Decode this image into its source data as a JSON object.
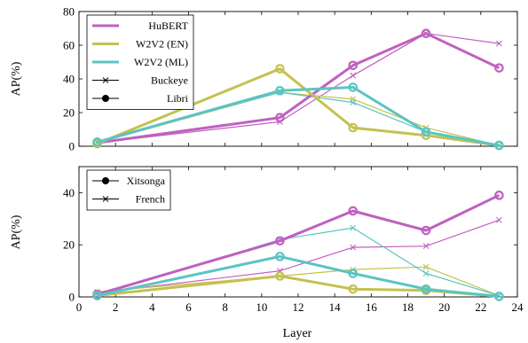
{
  "chart_data": [
    {
      "type": "line",
      "xlabel": "",
      "ylabel": "AP(%)",
      "xlim": [
        0,
        24
      ],
      "ylim": [
        0,
        80
      ],
      "x_ticks": [],
      "y_ticks": [
        "0",
        "20",
        "40",
        "60",
        "80"
      ],
      "grid": false,
      "legend": {
        "placement": "top-left",
        "entries": [
          {
            "label": "HuBERT",
            "kind": "model",
            "color": "#c060c0"
          },
          {
            "label": "W2V2 (EN)",
            "kind": "model",
            "color": "#c4c14f"
          },
          {
            "label": "W2V2 (ML)",
            "kind": "model",
            "color": "#5bc4c4"
          },
          {
            "label": "Buckeye",
            "kind": "marker",
            "marker": "cross"
          },
          {
            "label": "Libri",
            "kind": "marker",
            "marker": "circle"
          }
        ]
      },
      "series": [
        {
          "name": "HuBERT",
          "marker": "circle",
          "color": "#c060c0",
          "thick": true,
          "x": [
            1,
            11,
            15,
            19,
            23
          ],
          "y": [
            2,
            17,
            48,
            67,
            46.5
          ]
        },
        {
          "name": "HuBERT",
          "marker": "cross",
          "color": "#c060c0",
          "thick": false,
          "x": [
            1,
            11,
            15,
            19,
            23
          ],
          "y": [
            2,
            14.5,
            42,
            67,
            61
          ]
        },
        {
          "name": "W2V2 (EN)",
          "marker": "circle",
          "color": "#c4c14f",
          "thick": true,
          "x": [
            1,
            11,
            15,
            19,
            23
          ],
          "y": [
            1.5,
            46,
            11,
            6.5,
            0.5
          ]
        },
        {
          "name": "W2V2 (EN)",
          "marker": "cross",
          "color": "#c4c14f",
          "thick": false,
          "x": [
            1,
            11,
            15,
            19,
            23
          ],
          "y": [
            2,
            32,
            28,
            11,
            0.5
          ]
        },
        {
          "name": "W2V2 (ML)",
          "marker": "circle",
          "color": "#5bc4c4",
          "thick": true,
          "x": [
            1,
            11,
            15,
            19,
            23
          ],
          "y": [
            2.5,
            33,
            35,
            8.5,
            0.5
          ]
        },
        {
          "name": "W2V2 (ML)",
          "marker": "cross",
          "color": "#5bc4c4",
          "thick": false,
          "x": [
            1,
            11,
            15,
            19,
            23
          ],
          "y": [
            2.5,
            32,
            26,
            8.5,
            0.5
          ]
        }
      ]
    },
    {
      "type": "line",
      "xlabel": "Layer",
      "ylabel": "AP(%)",
      "xlim": [
        0,
        24
      ],
      "ylim": [
        0,
        50
      ],
      "x_ticks": [
        "0",
        "2",
        "4",
        "6",
        "8",
        "10",
        "12",
        "14",
        "16",
        "18",
        "20",
        "22",
        "24"
      ],
      "y_ticks": [
        "0",
        "20",
        "40"
      ],
      "grid": false,
      "legend": {
        "placement": "top-left",
        "entries": [
          {
            "label": "Xitsonga",
            "kind": "marker",
            "marker": "circle"
          },
          {
            "label": "French",
            "kind": "marker",
            "marker": "cross"
          }
        ]
      },
      "series": [
        {
          "name": "HuBERT",
          "marker": "circle",
          "color": "#c060c0",
          "thick": true,
          "x": [
            1,
            11,
            15,
            19,
            23
          ],
          "y": [
            1,
            21.5,
            33,
            25.5,
            39
          ]
        },
        {
          "name": "HuBERT",
          "marker": "cross",
          "color": "#c060c0",
          "thick": false,
          "x": [
            1,
            11,
            15,
            19,
            23
          ],
          "y": [
            1.5,
            10,
            19,
            19.5,
            29.5
          ]
        },
        {
          "name": "W2V2 (EN)",
          "marker": "circle",
          "color": "#c4c14f",
          "thick": true,
          "x": [
            1,
            11,
            15,
            19,
            23
          ],
          "y": [
            0.5,
            8,
            3,
            2.5,
            0.2
          ]
        },
        {
          "name": "W2V2 (EN)",
          "marker": "cross",
          "color": "#c4c14f",
          "thick": false,
          "x": [
            1,
            11,
            15,
            19,
            23
          ],
          "y": [
            2,
            8,
            10.5,
            11.5,
            0.5
          ]
        },
        {
          "name": "W2V2 (ML)",
          "marker": "circle",
          "color": "#5bc4c4",
          "thick": true,
          "x": [
            1,
            11,
            15,
            19,
            23
          ],
          "y": [
            0.5,
            15.5,
            9,
            3,
            0.2
          ]
        },
        {
          "name": "W2V2 (ML)",
          "marker": "cross",
          "color": "#5bc4c4",
          "thick": false,
          "x": [
            1,
            11,
            15,
            19,
            23
          ],
          "y": [
            0.5,
            22,
            26.5,
            9,
            0.5
          ]
        }
      ]
    }
  ]
}
